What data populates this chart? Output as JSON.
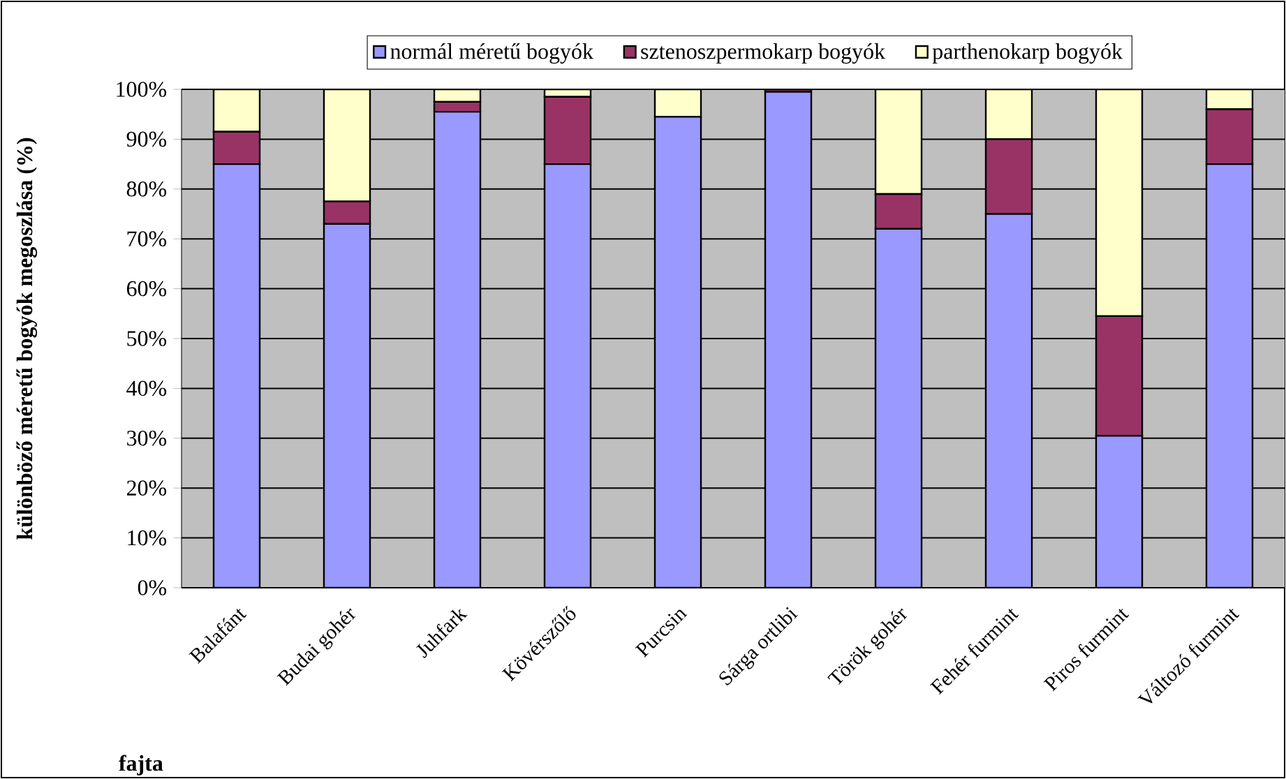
{
  "chart_data": {
    "type": "bar",
    "stacked": true,
    "xlabel": "fajta",
    "ylabel": "különböző méretű bogyók megoszlása (%)",
    "categories": [
      "Balafánt",
      "Budai gohér",
      "Juhfark",
      "Kövérszőlő",
      "Purcsin",
      "Sárga ortlibi",
      "Török gohér",
      "Fehér furmint",
      "Piros furmint",
      "Változó furmint"
    ],
    "series": [
      {
        "name": "normál méretű bogyók",
        "color": "#9999ff",
        "values": [
          85,
          73,
          95.5,
          85,
          94.5,
          99.5,
          72,
          75,
          30.5,
          85
        ]
      },
      {
        "name": "sztenoszpermokarp bogyók",
        "color": "#993366",
        "values": [
          6.5,
          4.5,
          2,
          13.5,
          0,
          0.5,
          7,
          15,
          24,
          11
        ]
      },
      {
        "name": "parthenokarp bogyók",
        "color": "#ffffcc",
        "values": [
          8.5,
          22.5,
          2.5,
          1.5,
          5.5,
          0,
          21,
          10,
          45.5,
          4
        ]
      }
    ],
    "ylim": [
      0,
      100
    ],
    "yticks": [
      {
        "value": 0,
        "label": "0%"
      },
      {
        "value": 10,
        "label": "10%"
      },
      {
        "value": 20,
        "label": "20%"
      },
      {
        "value": 30,
        "label": "30%"
      },
      {
        "value": 40,
        "label": "40%"
      },
      {
        "value": 50,
        "label": "50%"
      },
      {
        "value": 60,
        "label": "60%"
      },
      {
        "value": 70,
        "label": "70%"
      },
      {
        "value": 80,
        "label": "80%"
      },
      {
        "value": 90,
        "label": "90%"
      },
      {
        "value": 100,
        "label": "100%"
      }
    ],
    "grid": "y",
    "legend": "top"
  }
}
